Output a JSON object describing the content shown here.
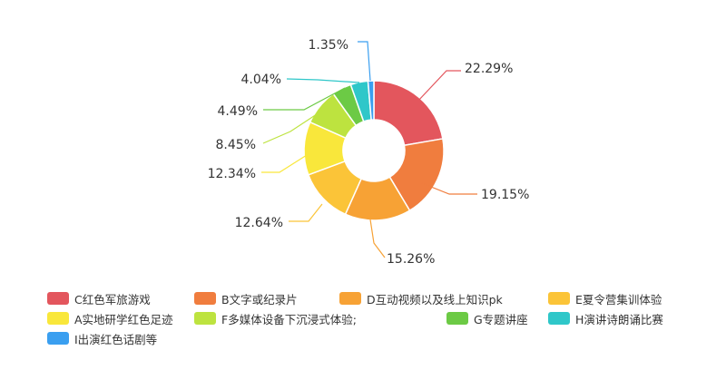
{
  "chart_data": {
    "type": "pie",
    "donut": true,
    "legend_position": "bottom",
    "slices": [
      {
        "name": "C红色军旅游戏",
        "value": 22.29,
        "label": "22.29%",
        "color": "#e3565d"
      },
      {
        "name": "B文字或纪录片",
        "value": 19.15,
        "label": "19.15%",
        "color": "#f07d3e"
      },
      {
        "name": "D互动视频以及线上知识pk",
        "value": 15.26,
        "label": "15.26%",
        "color": "#f7a235"
      },
      {
        "name": "E夏令营集训体验",
        "value": 12.64,
        "label": "12.64%",
        "color": "#fbc438"
      },
      {
        "name": "A实地研学红色足迹",
        "value": 12.34,
        "label": "12.34%",
        "color": "#f9e73b"
      },
      {
        "name": "F多媒体设备下沉浸式体验;",
        "value": 8.45,
        "label": "8.45%",
        "color": "#bde33f"
      },
      {
        "name": "G专题讲座",
        "value": 4.49,
        "label": "4.49%",
        "color": "#6cca45"
      },
      {
        "name": "H演讲诗朗诵比赛",
        "value": 4.04,
        "label": "4.04%",
        "color": "#2fc7c9"
      },
      {
        "name": "I出演红色话剧等",
        "value": 1.35,
        "label": "1.35%",
        "color": "#3a9ff0"
      }
    ]
  }
}
